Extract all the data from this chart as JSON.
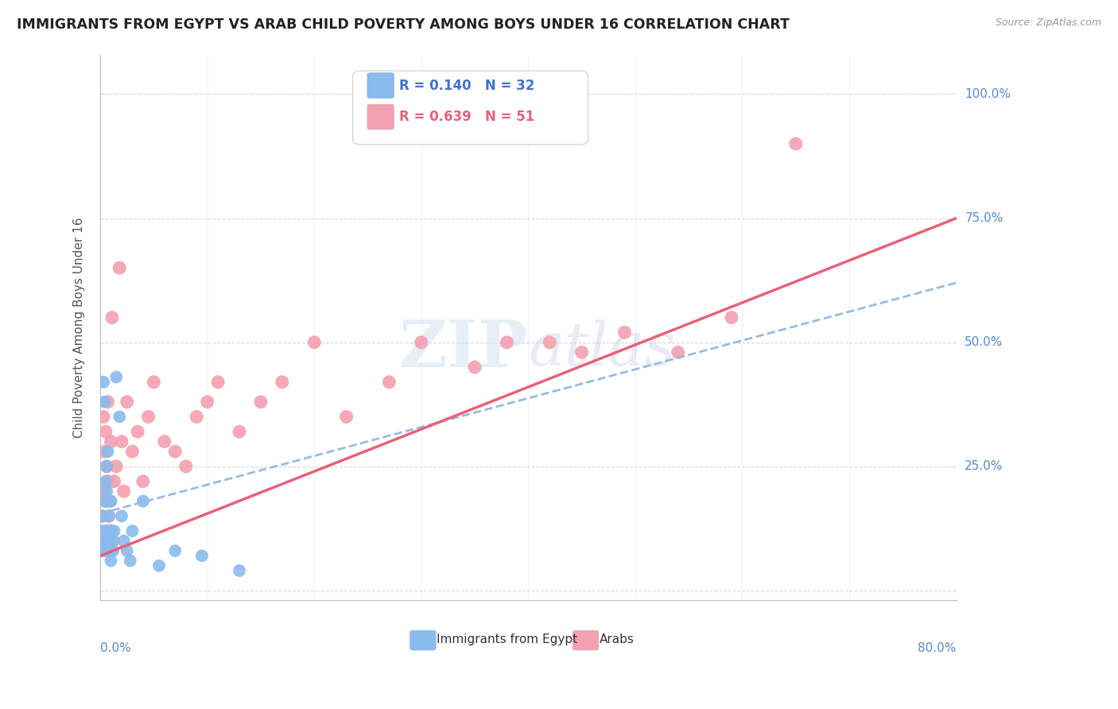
{
  "title": "IMMIGRANTS FROM EGYPT VS ARAB CHILD POVERTY AMONG BOYS UNDER 16 CORRELATION CHART",
  "source": "Source: ZipAtlas.com",
  "ylabel": "Child Poverty Among Boys Under 16",
  "xlim": [
    0.0,
    0.8
  ],
  "ylim": [
    -0.02,
    1.08
  ],
  "ytick_positions": [
    0.0,
    0.25,
    0.5,
    0.75,
    1.0
  ],
  "ytick_labels": [
    "",
    "25.0%",
    "50.0%",
    "75.0%",
    "100.0%"
  ],
  "series1_label": "Immigrants from Egypt",
  "series1_R": 0.14,
  "series1_N": 32,
  "series1_color": "#88BBEE",
  "series1_line_color": "#99BBDD",
  "series2_label": "Arabs",
  "series2_R": 0.639,
  "series2_N": 51,
  "series2_color": "#F4A0B0",
  "series2_line_color": "#E8607A",
  "legend_color": "#4472C4",
  "legend_color2": "#E8607A",
  "watermark": "ZIPatlas",
  "background_color": "#FFFFFF",
  "grid_color": "#CCCCCC",
  "title_color": "#222222",
  "axis_label_color": "#5588CC",
  "series1_x": [
    0.001,
    0.002,
    0.003,
    0.003,
    0.004,
    0.004,
    0.005,
    0.005,
    0.006,
    0.006,
    0.007,
    0.007,
    0.008,
    0.008,
    0.009,
    0.01,
    0.01,
    0.011,
    0.012,
    0.013,
    0.015,
    0.018,
    0.02,
    0.022,
    0.025,
    0.028,
    0.03,
    0.04,
    0.055,
    0.07,
    0.095,
    0.13
  ],
  "series1_y": [
    0.1,
    0.12,
    0.15,
    0.42,
    0.08,
    0.38,
    0.18,
    0.22,
    0.2,
    0.25,
    0.28,
    0.1,
    0.15,
    0.08,
    0.12,
    0.18,
    0.06,
    0.1,
    0.08,
    0.12,
    0.43,
    0.35,
    0.15,
    0.1,
    0.08,
    0.06,
    0.12,
    0.18,
    0.05,
    0.08,
    0.07,
    0.04
  ],
  "series2_x": [
    0.001,
    0.002,
    0.003,
    0.003,
    0.004,
    0.004,
    0.005,
    0.005,
    0.006,
    0.006,
    0.007,
    0.007,
    0.008,
    0.008,
    0.009,
    0.01,
    0.01,
    0.011,
    0.012,
    0.013,
    0.015,
    0.018,
    0.02,
    0.022,
    0.025,
    0.03,
    0.035,
    0.04,
    0.045,
    0.05,
    0.06,
    0.07,
    0.08,
    0.09,
    0.1,
    0.11,
    0.13,
    0.15,
    0.17,
    0.2,
    0.23,
    0.27,
    0.3,
    0.35,
    0.38,
    0.42,
    0.45,
    0.49,
    0.54,
    0.59,
    0.65
  ],
  "series2_y": [
    0.08,
    0.15,
    0.2,
    0.35,
    0.1,
    0.28,
    0.18,
    0.32,
    0.12,
    0.25,
    0.22,
    0.38,
    0.15,
    0.08,
    0.18,
    0.12,
    0.3,
    0.55,
    0.1,
    0.22,
    0.25,
    0.65,
    0.3,
    0.2,
    0.38,
    0.28,
    0.32,
    0.22,
    0.35,
    0.42,
    0.3,
    0.28,
    0.25,
    0.35,
    0.38,
    0.42,
    0.32,
    0.38,
    0.42,
    0.5,
    0.35,
    0.42,
    0.5,
    0.45,
    0.5,
    0.5,
    0.48,
    0.52,
    0.48,
    0.55,
    0.9
  ],
  "trend1_x": [
    0.0,
    0.8
  ],
  "trend1_y": [
    0.155,
    0.62
  ],
  "trend2_x": [
    0.0,
    0.8
  ],
  "trend2_y": [
    0.07,
    0.75
  ]
}
